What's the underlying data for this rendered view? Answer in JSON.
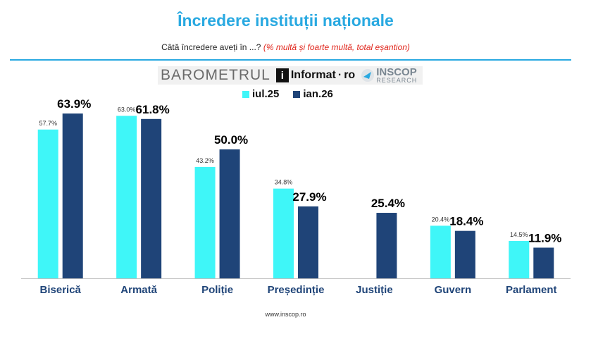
{
  "title": "Încredere instituții naționale",
  "subtitle_main": "Câtă încredere aveți în ...?",
  "subtitle_note": "(% multă și foarte multă, total eșantion)",
  "logos": {
    "barometru": "BAROMETRUL",
    "informat": "Informat",
    "informat_dot": "·",
    "informat_tld": "ro",
    "inscop": "INSCOP",
    "inscop_sub": "RESEARCH"
  },
  "footer": "www.inscop.ro",
  "colors": {
    "accent": "#29a9e1",
    "series_1": "#3ff6f8",
    "series_2": "#1f4478"
  },
  "chart_data": {
    "type": "bar",
    "title": "Încredere instituții naționale",
    "xlabel": "",
    "ylabel": "",
    "ylim": [
      0,
      70
    ],
    "categories": [
      "Biserică",
      "Armată",
      "Poliție",
      "Președinție",
      "Justiție",
      "Guvern",
      "Parlament"
    ],
    "series": [
      {
        "name": "iul.25",
        "values": [
          57.7,
          63.0,
          43.2,
          34.8,
          null,
          20.4,
          14.5
        ],
        "labels": [
          "57.7%",
          "63.0%",
          "43.2%",
          "34.8%",
          "",
          "20.4%",
          "14.5%"
        ]
      },
      {
        "name": "ian.26",
        "values": [
          63.9,
          61.8,
          50.0,
          27.9,
          25.4,
          18.4,
          11.9
        ],
        "labels": [
          "63.9%",
          "61.8%",
          "50.0%",
          "27.9%",
          "25.4%",
          "18.4%",
          "11.9%"
        ]
      }
    ],
    "legend": "top-center",
    "grid": false
  }
}
